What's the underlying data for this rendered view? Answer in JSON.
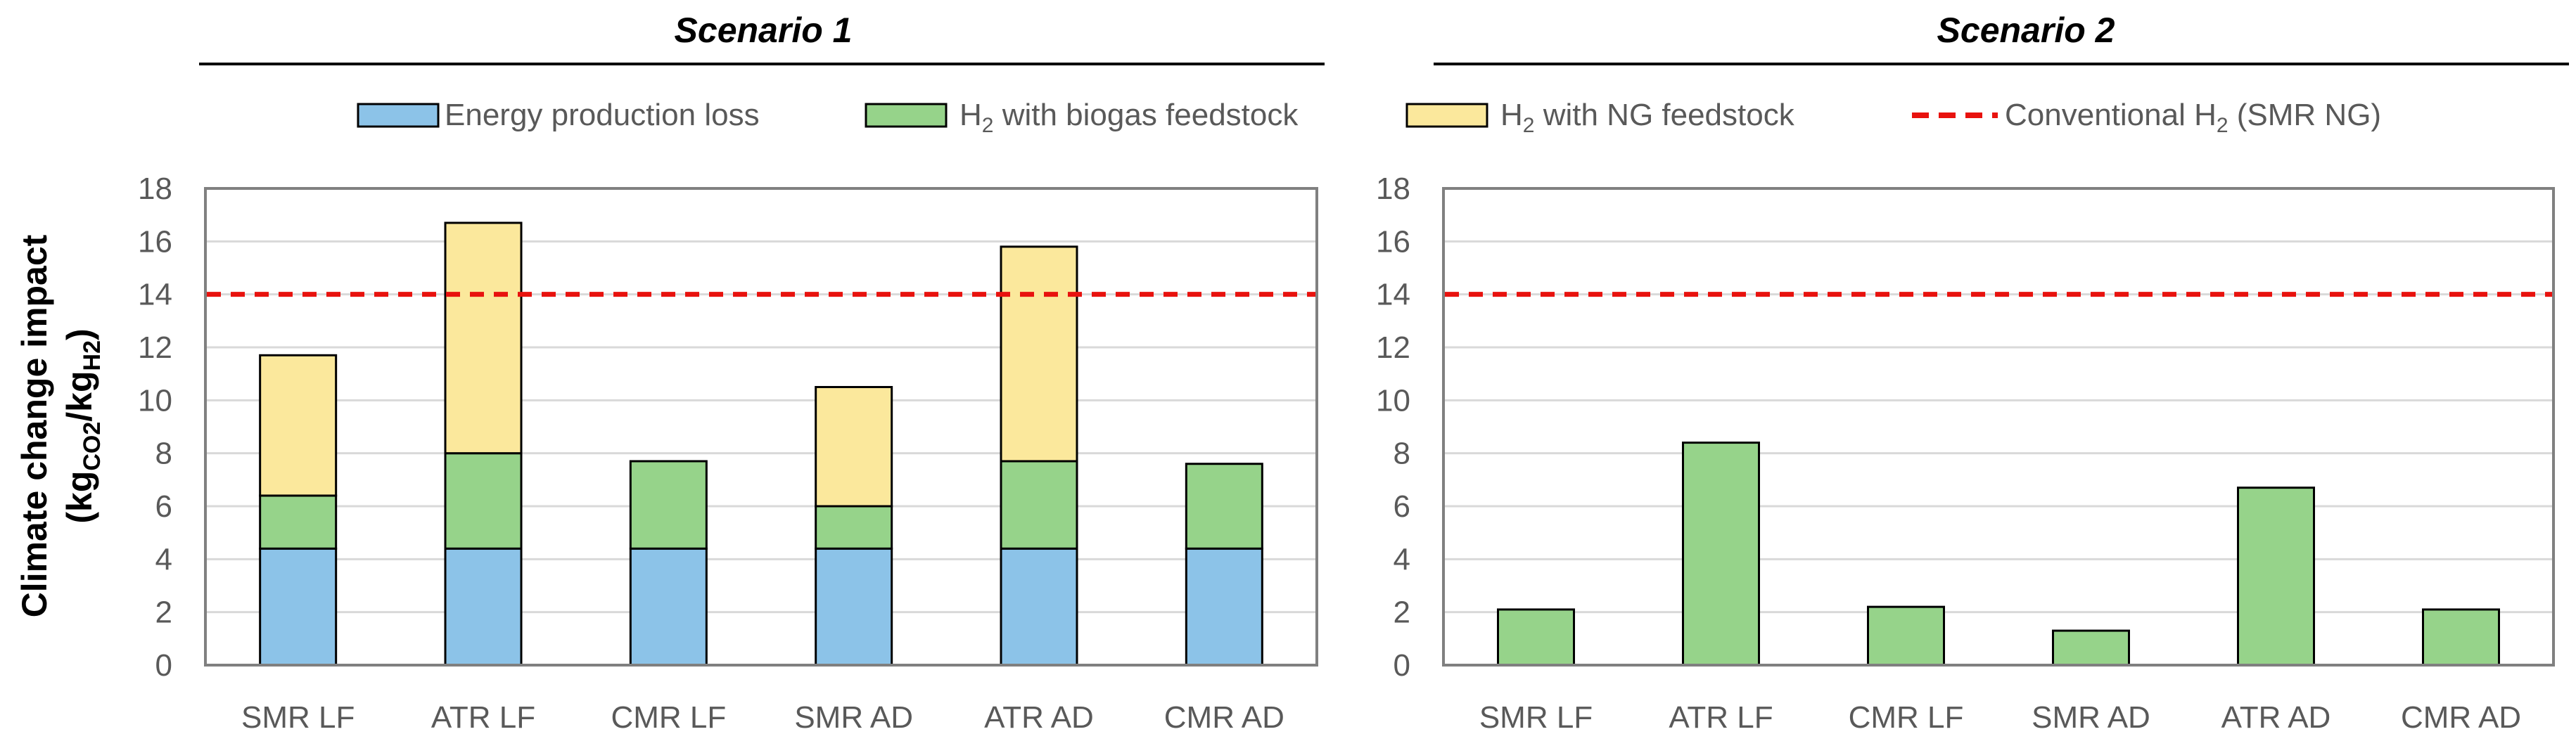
{
  "chart_data": [
    {
      "type": "bar",
      "stacked": true,
      "title": "Scenario 1",
      "ylabel": "Climate change impact (kgCO2/kgH2)",
      "ylim": [
        0,
        18
      ],
      "ytick_step": 2,
      "categories": [
        "SMR LF",
        "ATR LF",
        "CMR LF",
        "SMR AD",
        "ATR AD",
        "CMR AD"
      ],
      "series": [
        {
          "name": "Energy production loss",
          "color": "#8cc3e8",
          "values": [
            4.4,
            4.4,
            4.4,
            4.4,
            4.4,
            4.4
          ]
        },
        {
          "name": "H2 with biogas feedstock",
          "color": "#96d38a",
          "values": [
            2.0,
            3.6,
            3.3,
            1.6,
            3.3,
            3.2
          ]
        },
        {
          "name": "H2 with NG feedstock",
          "color": "#fbe89c",
          "values": [
            5.3,
            8.7,
            0,
            4.5,
            8.1,
            0
          ]
        }
      ],
      "reference_line": {
        "name": "Conventional H2 (SMR NG)",
        "value": 14,
        "color": "#e8120e"
      }
    },
    {
      "type": "bar",
      "stacked": true,
      "title": "Scenario 2",
      "ylim": [
        0,
        18
      ],
      "ytick_step": 2,
      "categories": [
        "SMR LF",
        "ATR LF",
        "CMR LF",
        "SMR AD",
        "ATR AD",
        "CMR AD"
      ],
      "series": [
        {
          "name": "H2 with biogas feedstock",
          "color": "#96d38a",
          "values": [
            2.1,
            8.4,
            2.2,
            1.3,
            6.7,
            2.1
          ]
        }
      ],
      "reference_line": {
        "name": "Conventional H2 (SMR NG)",
        "value": 14,
        "color": "#e8120e"
      }
    }
  ],
  "legend": {
    "items": [
      {
        "prefix": "Energy production loss",
        "sub": "",
        "suffix": "",
        "kind": "box",
        "color": "#8cc3e8"
      },
      {
        "prefix": "H",
        "sub": "2",
        "suffix": " with biogas feedstock",
        "kind": "box",
        "color": "#96d38a"
      },
      {
        "prefix": "H",
        "sub": "2",
        "suffix": " with NG feedstock",
        "kind": "box",
        "color": "#fbe89c"
      },
      {
        "prefix": "Conventional H",
        "sub": "2",
        "suffix": "  (SMR NG)",
        "kind": "dash",
        "color": "#e8120e"
      }
    ]
  },
  "ylabel_parts": {
    "line1": "Climate change impact",
    "open": "(kg",
    "sub1": "CO2",
    "mid": "/kg",
    "sub2": "H2",
    "close": ")"
  }
}
